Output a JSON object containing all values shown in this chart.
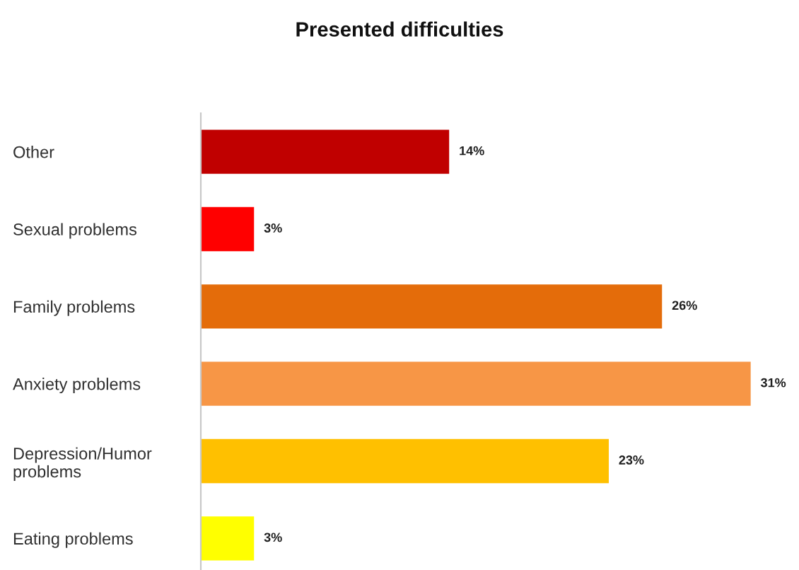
{
  "chart_data": {
    "type": "bar",
    "orientation": "horizontal",
    "title": "Presented difficulties",
    "categories": [
      "Other",
      "Sexual problems",
      "Family problems",
      "Anxiety problems",
      "Depression/Humor\nproblems",
      "Eating problems"
    ],
    "values": [
      14,
      3,
      26,
      31,
      23,
      3
    ],
    "colors": [
      "#c00000",
      "#ff0000",
      "#e46c0a",
      "#f79646",
      "#ffc000",
      "#ffff00"
    ],
    "value_labels": [
      "14%",
      "3%",
      "26%",
      "31%",
      "23%",
      "3%"
    ],
    "tick_labels": "y"
  }
}
